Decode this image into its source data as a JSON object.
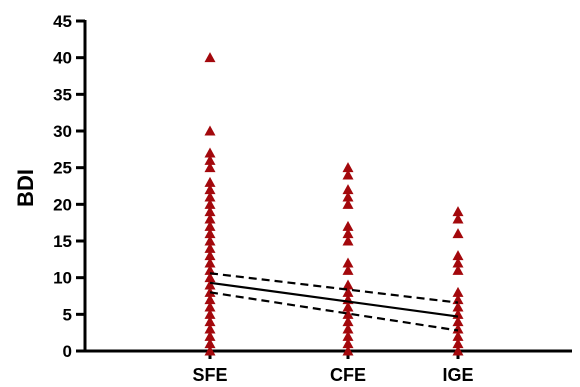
{
  "chart_data": {
    "type": "scatter",
    "title": "",
    "xlabel": "",
    "ylabel": "BDI",
    "ylim": [
      0,
      45
    ],
    "yticks": [
      0,
      5,
      10,
      15,
      20,
      25,
      30,
      35,
      40,
      45
    ],
    "categories": [
      "SFE",
      "CFE",
      "IGE"
    ],
    "grid": false,
    "marker_color": "#a3080c",
    "points": {
      "SFE": [
        40,
        30,
        27,
        26,
        25,
        23,
        22,
        21,
        20,
        19,
        18,
        17,
        16,
        15,
        14,
        13,
        12,
        11,
        10,
        9,
        8,
        7,
        6,
        5,
        4,
        3,
        2,
        1,
        0
      ],
      "CFE": [
        25,
        24,
        22,
        21,
        20,
        17,
        16,
        15,
        12,
        11,
        9,
        8,
        7,
        6,
        5,
        4,
        3,
        2,
        1,
        0
      ],
      "IGE": [
        19,
        18,
        16,
        13,
        12,
        11,
        8,
        7,
        6,
        5,
        4,
        3,
        2,
        1,
        0
      ]
    },
    "regression": {
      "fit": [
        9.3,
        4.7
      ],
      "ci_upper": [
        10.6,
        6.6
      ],
      "ci_lower": [
        8.0,
        2.8
      ]
    }
  }
}
